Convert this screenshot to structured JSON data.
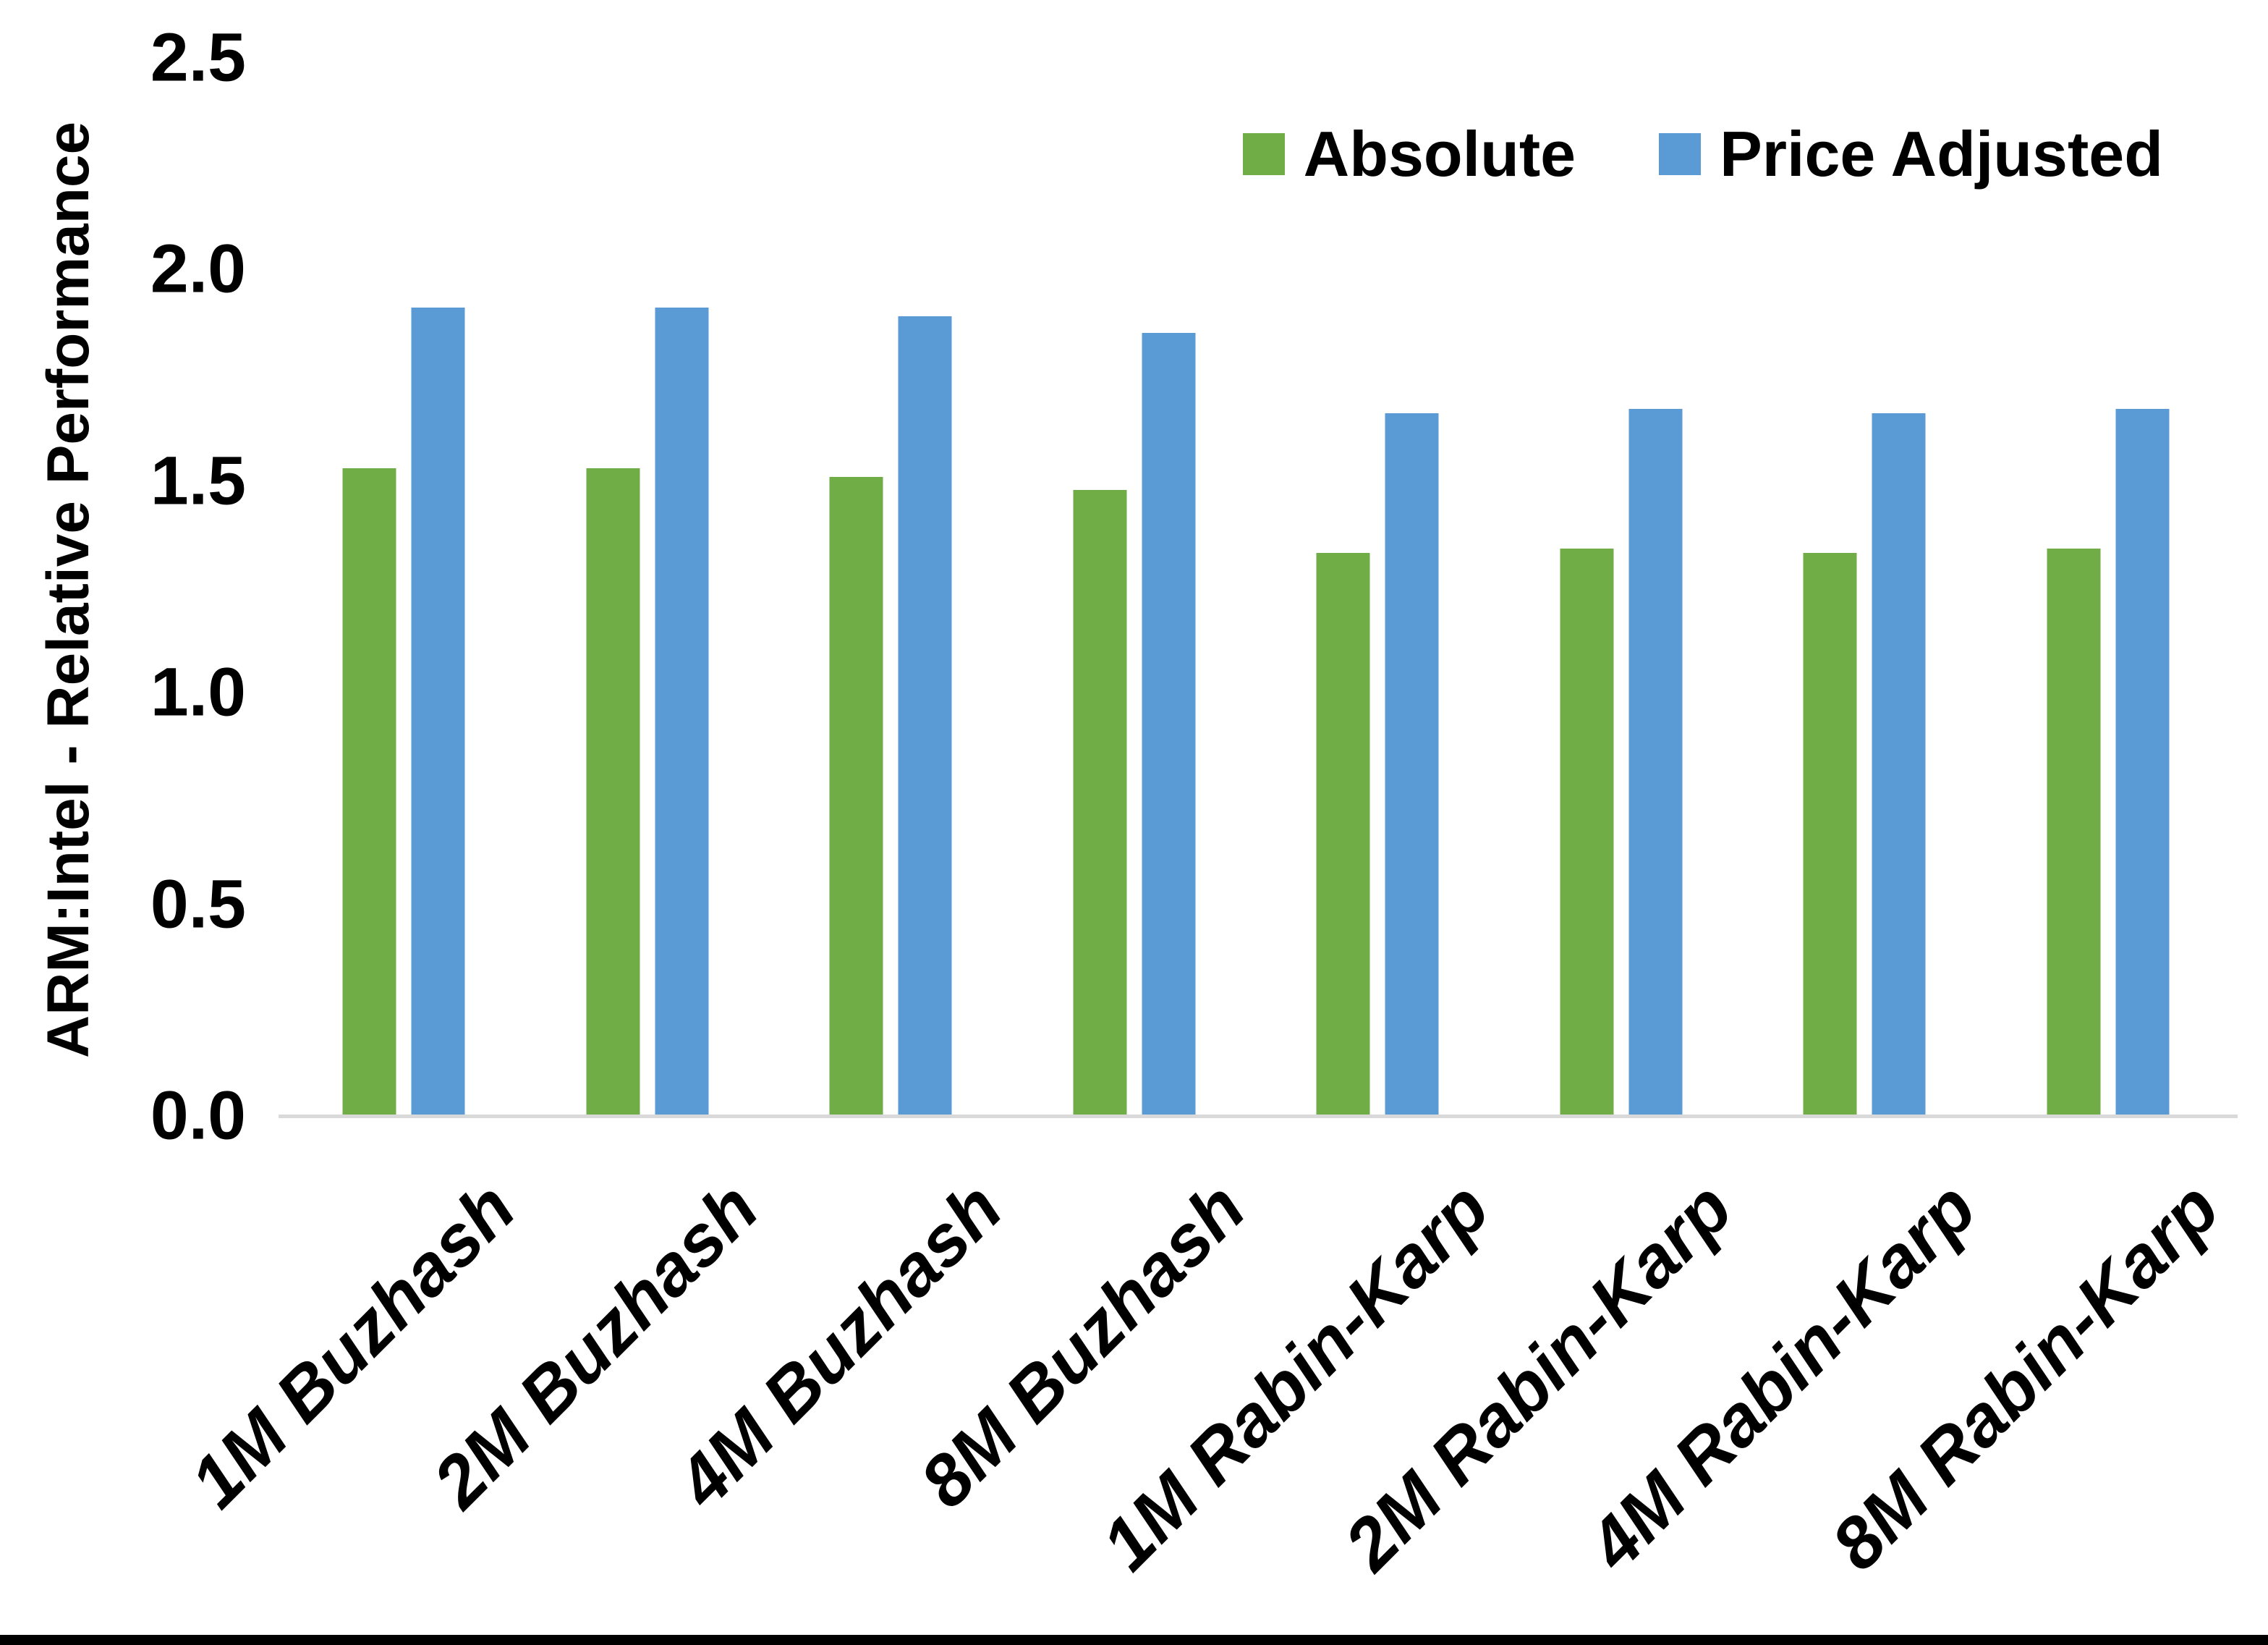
{
  "chart_data": {
    "type": "bar",
    "title": "",
    "xlabel": "",
    "ylabel": "ARM:Intel - Relative Performance",
    "ylim": [
      0.0,
      2.5
    ],
    "ytick_labels": [
      "2.5",
      "2.0",
      "1.5",
      "1.0",
      "0.5",
      "0.0"
    ],
    "grid": false,
    "legend_position": "top-right",
    "categories": [
      "1M Buzhash",
      "2M Buzhash",
      "4M Buzhash",
      "8M Buzhash",
      "1M Rabin-Karp",
      "2M Rabin-Karp",
      "4M Rabin-Karp",
      "8M Rabin-Karp"
    ],
    "series": [
      {
        "name": "Absolute",
        "color": "#70AD47",
        "values": [
          1.53,
          1.53,
          1.51,
          1.48,
          1.33,
          1.34,
          1.33,
          1.34
        ]
      },
      {
        "name": "Price Adjusted",
        "color": "#5B9BD5",
        "values": [
          1.91,
          1.91,
          1.89,
          1.85,
          1.66,
          1.67,
          1.66,
          1.67
        ]
      }
    ],
    "axis_line_color": "#D9D9D9",
    "background_color": "#FFFFFF",
    "bottom_bar_color": "#000000",
    "text_color": "#000000"
  }
}
